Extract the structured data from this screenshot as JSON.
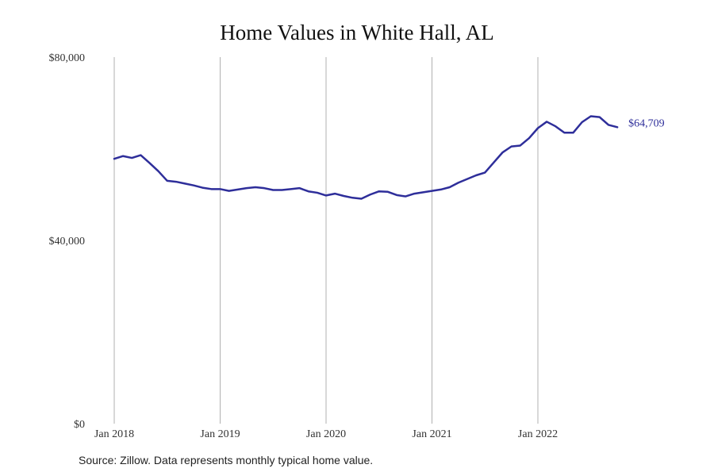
{
  "chart_data": {
    "type": "line",
    "title": "Home Values in White Hall, AL",
    "xlabel": "",
    "ylabel": "",
    "x_tick_labels": [
      "Jan 2018",
      "Jan 2019",
      "Jan 2020",
      "Jan 2021",
      "Jan 2022"
    ],
    "y_tick_labels": [
      "$0",
      "$40,000",
      "$80,000"
    ],
    "y_ticks": [
      0,
      40000,
      80000
    ],
    "ylim": [
      0,
      80000
    ],
    "grid": "vertical",
    "end_label": "$64,709",
    "series": [
      {
        "color": "#2e2e9a",
        "x": [
          "2018-01",
          "2018-02",
          "2018-03",
          "2018-04",
          "2018-05",
          "2018-06",
          "2018-07",
          "2018-08",
          "2018-09",
          "2018-10",
          "2018-11",
          "2018-12",
          "2019-01",
          "2019-02",
          "2019-03",
          "2019-04",
          "2019-05",
          "2019-06",
          "2019-07",
          "2019-08",
          "2019-09",
          "2019-10",
          "2019-11",
          "2019-12",
          "2020-01",
          "2020-02",
          "2020-03",
          "2020-04",
          "2020-05",
          "2020-06",
          "2020-07",
          "2020-08",
          "2020-09",
          "2020-10",
          "2020-11",
          "2020-12",
          "2021-01",
          "2021-02",
          "2021-03",
          "2021-04",
          "2021-05",
          "2021-06",
          "2021-07",
          "2021-08",
          "2021-09",
          "2021-10",
          "2021-11",
          "2021-12",
          "2022-01",
          "2022-02",
          "2022-03",
          "2022-04",
          "2022-05",
          "2022-06",
          "2022-07",
          "2022-08",
          "2022-09",
          "2022-10"
        ],
        "values": [
          57800,
          58400,
          58000,
          58600,
          56900,
          55100,
          53000,
          52800,
          52400,
          52000,
          51500,
          51200,
          51200,
          50800,
          51100,
          51400,
          51600,
          51400,
          51000,
          51000,
          51200,
          51400,
          50700,
          50400,
          49800,
          50200,
          49700,
          49300,
          49100,
          50000,
          50700,
          50600,
          49900,
          49600,
          50200,
          50500,
          50800,
          51100,
          51600,
          52600,
          53400,
          54200,
          54800,
          57000,
          59200,
          60500,
          60700,
          62300,
          64500,
          65900,
          64900,
          63500,
          63500,
          65800,
          67100,
          66900,
          65200,
          64709
        ]
      }
    ]
  },
  "source": "Source: Zillow. Data represents monthly typical home value."
}
